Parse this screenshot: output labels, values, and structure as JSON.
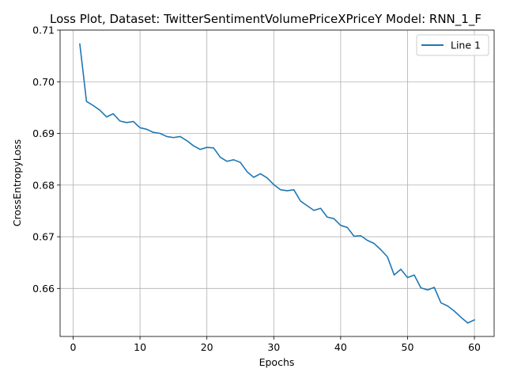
{
  "chart_data": {
    "type": "line",
    "title": "Loss Plot, Dataset: TwitterSentimentVolumePriceXPriceY Model: RNN_1_F",
    "xlabel": "Epochs",
    "ylabel": "CrossEntropyLoss",
    "xlim": [
      -1.95,
      62.95
    ],
    "ylim": [
      0.6507,
      0.71
    ],
    "xticks": [
      0,
      10,
      20,
      30,
      40,
      50,
      60
    ],
    "xtick_labels": [
      "0",
      "10",
      "20",
      "30",
      "40",
      "50",
      "60"
    ],
    "yticks": [
      0.66,
      0.67,
      0.68,
      0.69,
      0.7,
      0.71
    ],
    "ytick_labels": [
      "0.66",
      "0.67",
      "0.68",
      "0.69",
      "0.70",
      "0.71"
    ],
    "grid": true,
    "legend_position": "top-right",
    "series": [
      {
        "name": "Line 1",
        "color": "#1f77b4",
        "x": [
          1,
          2,
          3,
          4,
          5,
          6,
          7,
          8,
          9,
          10,
          11,
          12,
          13,
          14,
          15,
          16,
          17,
          18,
          19,
          20,
          21,
          22,
          23,
          24,
          25,
          26,
          27,
          28,
          29,
          30,
          31,
          32,
          33,
          34,
          35,
          36,
          37,
          38,
          39,
          40,
          41,
          42,
          43,
          44,
          45,
          46,
          47,
          48,
          49,
          50,
          51,
          52,
          53,
          54,
          55,
          56,
          57,
          58,
          59,
          60
        ],
        "values": [
          0.7073,
          0.6962,
          0.6954,
          0.6945,
          0.6932,
          0.6938,
          0.6924,
          0.6921,
          0.6923,
          0.6911,
          0.6908,
          0.6902,
          0.69,
          0.6894,
          0.6892,
          0.6894,
          0.6886,
          0.6876,
          0.6869,
          0.6873,
          0.6872,
          0.6854,
          0.6846,
          0.6849,
          0.6844,
          0.6826,
          0.6815,
          0.6822,
          0.6814,
          0.6801,
          0.6791,
          0.6789,
          0.6791,
          0.6769,
          0.676,
          0.6751,
          0.6755,
          0.6738,
          0.6735,
          0.6722,
          0.6718,
          0.6701,
          0.6702,
          0.6693,
          0.6687,
          0.6675,
          0.6661,
          0.6626,
          0.6637,
          0.6621,
          0.6626,
          0.6601,
          0.6597,
          0.6602,
          0.6572,
          0.6566,
          0.6556,
          0.6544,
          0.6533,
          0.6539
        ]
      }
    ]
  }
}
